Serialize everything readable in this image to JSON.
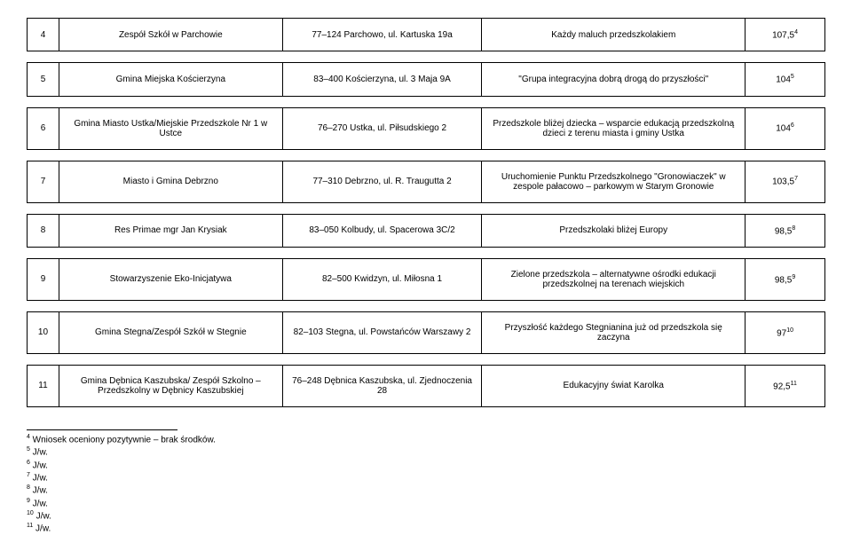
{
  "rows": [
    {
      "n": "4",
      "org": "Zespół Szkół w Parchowie",
      "addr": "77–124 Parchowo, ul. Kartuska 19a",
      "proj": "Każdy maluch przedszkolakiem",
      "score": "107,5",
      "sup": "4"
    },
    {
      "n": "5",
      "org": "Gmina Miejska Kościerzyna",
      "addr": "83–400 Kościerzyna, ul. 3 Maja 9A",
      "proj": "\"Grupa integracyjna dobrą drogą do przyszłości\"",
      "score": "104",
      "sup": "5"
    },
    {
      "n": "6",
      "org": "Gmina Miasto Ustka/Miejskie Przedszkole Nr 1 w Ustce",
      "addr": "76–270 Ustka, ul. Piłsudskiego 2",
      "proj": "Przedszkole bliżej dziecka – wsparcie edukacją przedszkolną dzieci z terenu miasta i gminy Ustka",
      "score": "104",
      "sup": "6"
    },
    {
      "n": "7",
      "org": "Miasto i Gmina Debrzno",
      "addr": "77–310 Debrzno, ul. R. Traugutta 2",
      "proj": "Uruchomienie Punktu Przedszkolnego \"Gronowiaczek\" w zespole pałacowo – parkowym w Starym Gronowie",
      "score": "103,5",
      "sup": "7"
    },
    {
      "n": "8",
      "org": "Res Primae mgr Jan Krysiak",
      "addr": "83–050 Kolbudy, ul. Spacerowa 3C/2",
      "proj": "Przedszkolaki bliżej Europy",
      "score": "98,5",
      "sup": "8"
    },
    {
      "n": "9",
      "org": "Stowarzyszenie Eko-Inicjatywa",
      "addr": "82–500 Kwidzyn, ul. Miłosna 1",
      "proj": "Zielone przedszkola – alternatywne ośrodki edukacji przedszkolnej na terenach wiejskich",
      "score": "98,5",
      "sup": "9"
    },
    {
      "n": "10",
      "org": "Gmina Stegna/Zespół Szkół w Stegnie",
      "addr": "82–103 Stegna, ul. Powstańców Warszawy 2",
      "proj": "Przyszłość każdego Stegnianina już od przedszkola się zaczyna",
      "score": "97",
      "sup": "10"
    },
    {
      "n": "11",
      "org": "Gmina Dębnica Kaszubska/ Zespół Szkolno – Przedszkolny w Dębnicy Kaszubskiej",
      "addr": "76–248 Dębnica Kaszubska, ul. Zjednoczenia 28",
      "proj": "Edukacyjny świat Karolka",
      "score": "92,5",
      "sup": "11"
    }
  ],
  "footnotes": [
    {
      "n": "4",
      "t": "Wniosek oceniony pozytywnie – brak środków."
    },
    {
      "n": "5",
      "t": "J/w."
    },
    {
      "n": "6",
      "t": "J/w."
    },
    {
      "n": "7",
      "t": "J/w."
    },
    {
      "n": "8",
      "t": "J/w."
    },
    {
      "n": "9",
      "t": "J/w."
    },
    {
      "n": "10",
      "t": "J/w."
    },
    {
      "n": "11",
      "t": "J/w."
    }
  ]
}
